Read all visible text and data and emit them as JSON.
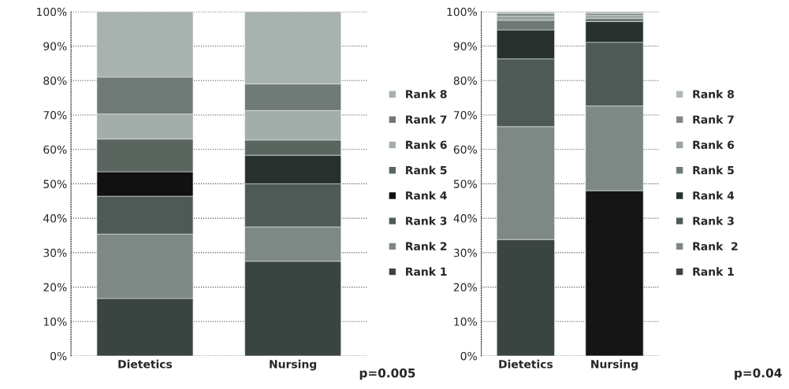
{
  "chart_data": [
    {
      "type": "bar",
      "stacked": true,
      "categories": [
        "Dietetics",
        "Nursing"
      ],
      "ylim": [
        0,
        100
      ],
      "yticks": [
        {
          "value": 0,
          "label": "0%"
        },
        {
          "value": 10,
          "label": "10%"
        },
        {
          "value": 20,
          "label": "20%"
        },
        {
          "value": 30,
          "label": "30%"
        },
        {
          "value": 40,
          "label": "40%"
        },
        {
          "value": 50,
          "label": "50%"
        },
        {
          "value": 60,
          "label": "60%"
        },
        {
          "value": 70,
          "label": "70%"
        },
        {
          "value": 80,
          "label": "80%"
        },
        {
          "value": 90,
          "label": "90%"
        },
        {
          "value": 100,
          "label": "100%"
        }
      ],
      "grid": "y",
      "legend": "right",
      "annotations": [
        "p=0.005"
      ],
      "series": [
        {
          "name": "Rank 1",
          "color": "#3a4440",
          "values": [
            16.7,
            27.5
          ]
        },
        {
          "name": "Rank 2",
          "color": "#7e8884",
          "values": [
            18.7,
            10
          ]
        },
        {
          "name": "Rank 3",
          "color": "#4e5a55",
          "values": [
            11,
            12.5
          ]
        },
        {
          "name": "Rank 4",
          "color": "#111111",
          "colors": [
            "#111111",
            "#27302c"
          ],
          "values": [
            7.1,
            8.3
          ]
        },
        {
          "name": "Rank 5",
          "color": "#5a6560",
          "values": [
            9.5,
            4.4
          ]
        },
        {
          "name": "Rank 6",
          "color": "#a3adaa",
          "values": [
            7.3,
            8.6
          ]
        },
        {
          "name": "Rank 7",
          "color": "#6f7a76",
          "values": [
            10.7,
            7.7
          ]
        },
        {
          "name": "Rank 8",
          "color": "#a8b2ae",
          "values": [
            19,
            21
          ]
        }
      ]
    },
    {
      "type": "bar",
      "stacked": true,
      "categories": [
        "Dietetics",
        "Nursing"
      ],
      "ylim": [
        0,
        100
      ],
      "yticks": [
        {
          "value": 0,
          "label": "0%"
        },
        {
          "value": 10,
          "label": "10%"
        },
        {
          "value": 20,
          "label": "20%"
        },
        {
          "value": 30,
          "label": "30%"
        },
        {
          "value": 40,
          "label": "40%"
        },
        {
          "value": 50,
          "label": "50%"
        },
        {
          "value": 60,
          "label": "60%"
        },
        {
          "value": 70,
          "label": "70%"
        },
        {
          "value": 80,
          "label": "80%"
        },
        {
          "value": 90,
          "label": "90%"
        },
        {
          "value": 100,
          "label": "100%"
        }
      ],
      "grid": "y",
      "legend": "right",
      "annotations": [
        "p=0.04"
      ],
      "series": [
        {
          "name": "Rank 1",
          "color": "#3a4440",
          "colors": [
            "#3a4440",
            "#151515"
          ],
          "values": [
            33.8,
            48
          ]
        },
        {
          "name": "Rank  2",
          "color": "#7e8884",
          "values": [
            32.8,
            24.6
          ]
        },
        {
          "name": "Rank 3",
          "color": "#4e5a55",
          "values": [
            19.7,
            18.5
          ]
        },
        {
          "name": "Rank 4",
          "color": "#27302c",
          "values": [
            8.4,
            6
          ]
        },
        {
          "name": "Rank 5",
          "color": "#6f7a76",
          "values": [
            2.8,
            1
          ]
        },
        {
          "name": "Rank 6",
          "color": "#9aa4a0",
          "values": [
            1.2,
            0.8
          ]
        },
        {
          "name": "Rank 7",
          "color": "#7e8884",
          "values": [
            0.8,
            0.6
          ]
        },
        {
          "name": "Rank 8",
          "color": "#b0bab6",
          "values": [
            0.5,
            0.5
          ]
        }
      ]
    }
  ]
}
